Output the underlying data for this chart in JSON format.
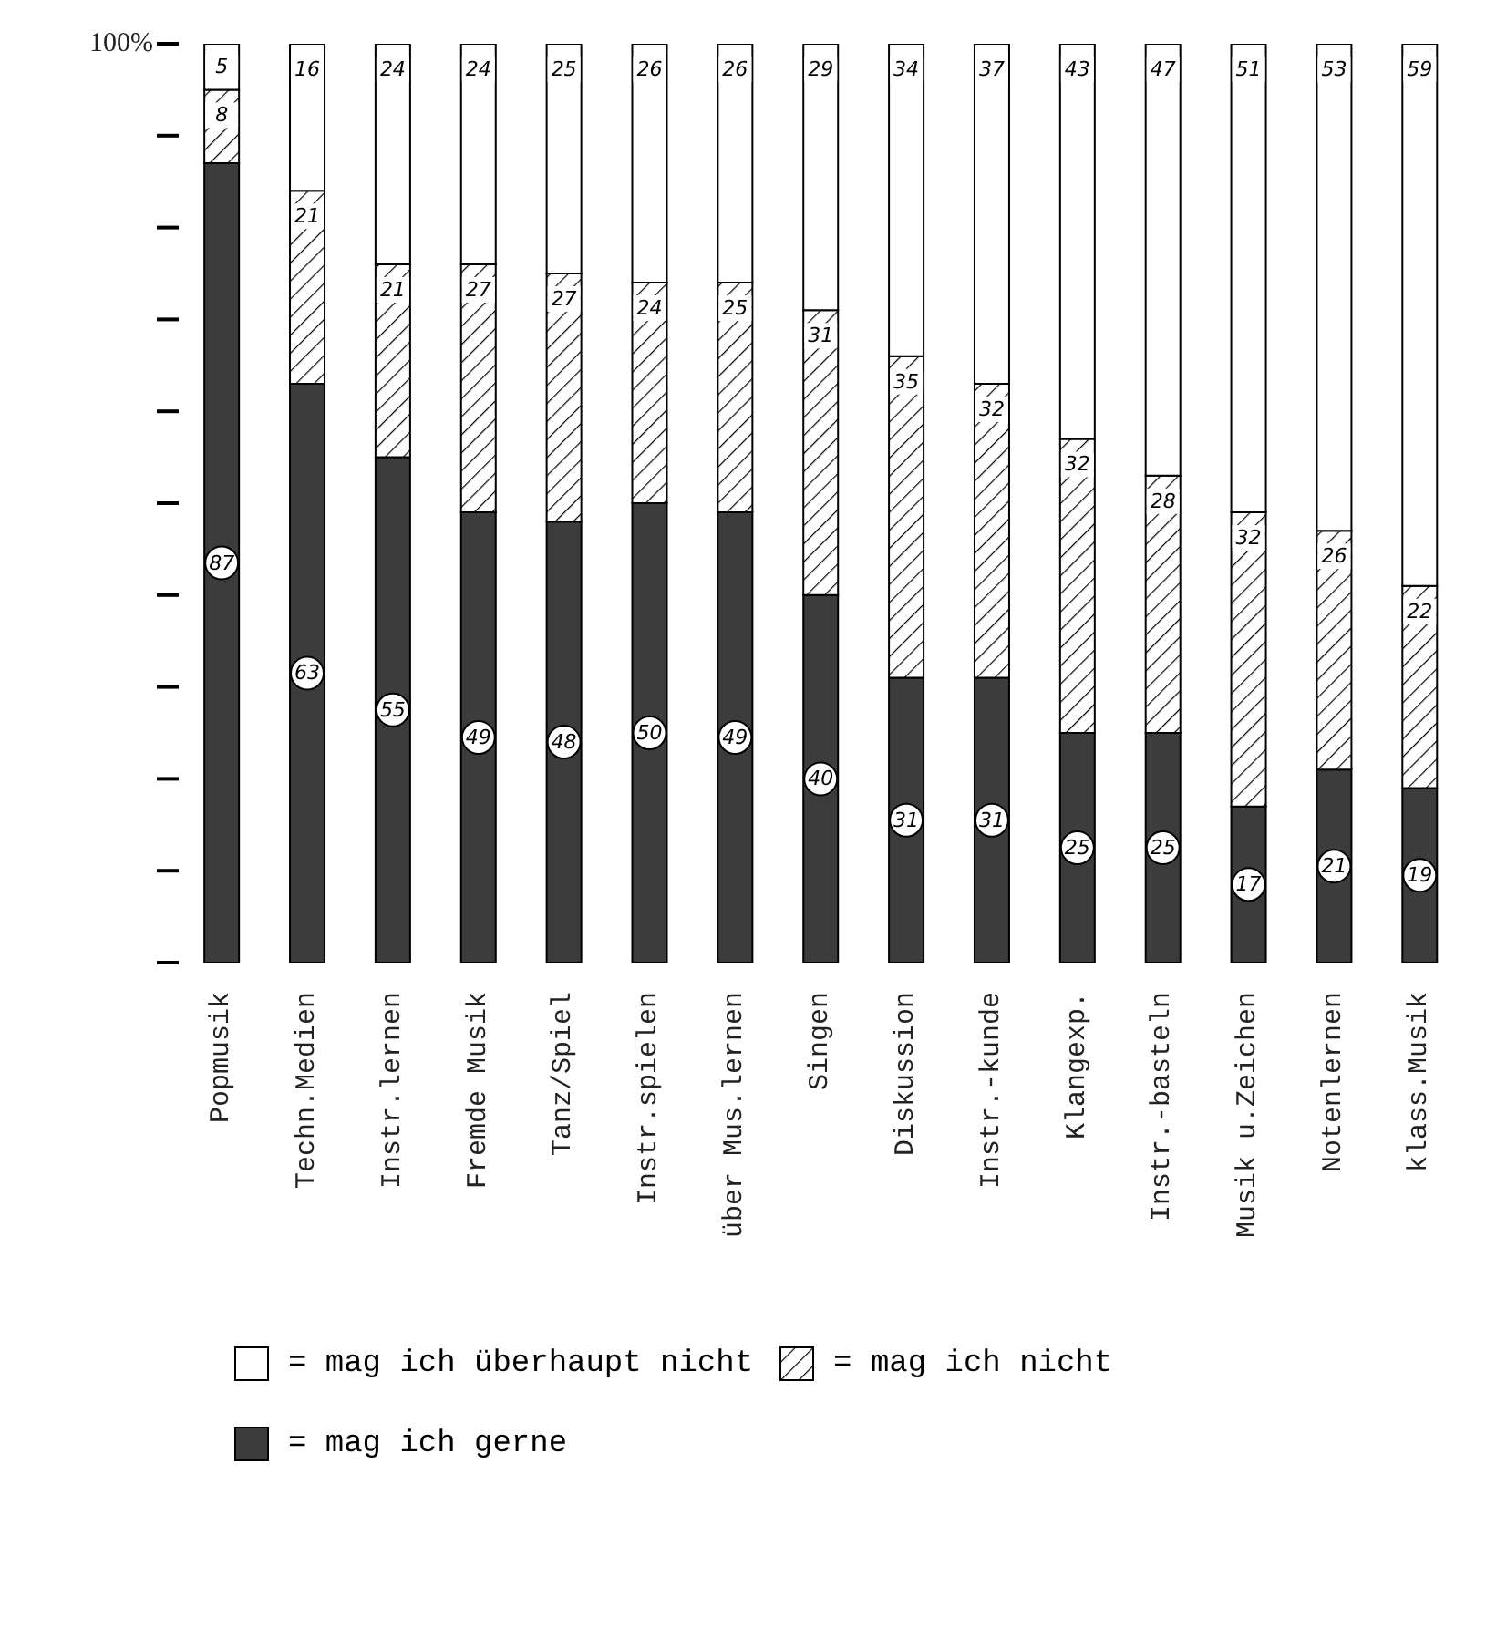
{
  "chart_data": {
    "type": "bar",
    "stacked": true,
    "data_labels": true,
    "legend": "bottom",
    "grid": false,
    "categories": [
      "Popmusik",
      "Techn.Medien",
      "Instr.lernen",
      "Fremde Musik",
      "Tanz/Spiel",
      "Instr.spielen",
      "über Mus.lernen",
      "Singen",
      "Diskussion",
      "Instr.-kunde",
      "Klangexp.",
      "Instr.-basteln",
      "Musik u.Zeichen",
      "Notenlernen",
      "klass.Musik"
    ],
    "series": [
      {
        "name": "= mag ich gerne",
        "color": "#3c3c3c",
        "values": [
          87,
          63,
          55,
          49,
          48,
          50,
          49,
          40,
          31,
          31,
          25,
          25,
          17,
          21,
          19
        ]
      },
      {
        "name": "= mag ich nicht",
        "color": "#000000",
        "values": [
          8,
          21,
          21,
          27,
          27,
          24,
          25,
          31,
          35,
          32,
          32,
          28,
          32,
          26,
          22
        ]
      },
      {
        "name": "= mag ich überhaupt nicht",
        "color": "#ffffff",
        "values": [
          5,
          16,
          24,
          24,
          25,
          26,
          26,
          29,
          34,
          37,
          43,
          47,
          51,
          53,
          59
        ]
      }
    ],
    "ylim": [
      0,
      100
    ],
    "yticks": [
      {
        "value": 0,
        "label": null
      },
      {
        "value": 10,
        "label": null
      },
      {
        "value": 20,
        "label": null
      },
      {
        "value": 30,
        "label": null
      },
      {
        "value": 40,
        "label": null
      },
      {
        "value": 50,
        "label": null
      },
      {
        "value": 60,
        "label": null
      },
      {
        "value": 70,
        "label": null
      },
      {
        "value": 80,
        "label": null
      },
      {
        "value": 90,
        "label": null
      },
      {
        "value": 100,
        "label": "100%"
      }
    ]
  }
}
